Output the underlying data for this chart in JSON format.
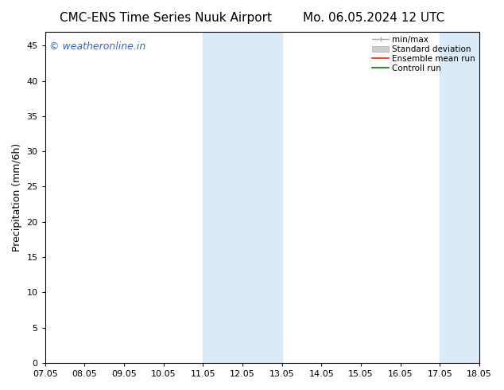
{
  "title_left": "CMC-ENS Time Series Nuuk Airport",
  "title_right": "Mo. 06.05.2024 12 UTC",
  "ylabel": "Precipitation (mm/6h)",
  "watermark": "© weatheronline.in",
  "watermark_color": "#3366cc",
  "ylim": [
    0,
    47
  ],
  "yticks": [
    0,
    5,
    10,
    15,
    20,
    25,
    30,
    35,
    40,
    45
  ],
  "xtick_labels": [
    "07.05",
    "08.05",
    "09.05",
    "10.05",
    "11.05",
    "12.05",
    "13.05",
    "14.05",
    "15.05",
    "16.05",
    "17.05",
    "18.05"
  ],
  "xtick_positions": [
    0,
    1,
    2,
    3,
    4,
    5,
    6,
    7,
    8,
    9,
    10,
    11
  ],
  "xlim": [
    0,
    11
  ],
  "shaded_bands": [
    {
      "x_start": 4.0,
      "x_end": 6.0
    },
    {
      "x_start": 10.0,
      "x_end": 11.0
    }
  ],
  "shade_color": "#daeaf7",
  "bg_color": "#ffffff",
  "legend_items": [
    {
      "label": "min/max",
      "color": "#aaaaaa"
    },
    {
      "label": "Standard deviation",
      "color": "#cccccc"
    },
    {
      "label": "Ensemble mean run",
      "color": "#ff2200"
    },
    {
      "label": "Controll run",
      "color": "#007700"
    }
  ],
  "title_fontsize": 11,
  "axis_label_fontsize": 9,
  "tick_fontsize": 8,
  "watermark_fontsize": 9,
  "legend_fontsize": 7.5
}
